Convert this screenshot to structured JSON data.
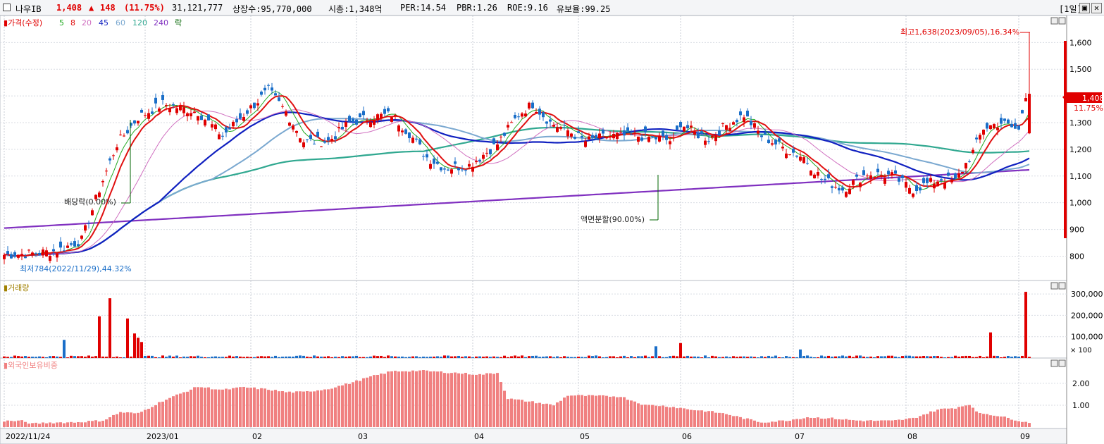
{
  "header": {
    "name": "나우IB",
    "price": "1,408",
    "arrow": "▲",
    "change": "148",
    "change_pct": "(11.75%)",
    "volume": "31,121,777",
    "listed": "상장수:95,770,000",
    "mcap": "시총:1,348억",
    "per": "PER:14.54",
    "pbr": "PBR:1.26",
    "roe": "ROE:9.16",
    "float": "유보율:99.25",
    "period": "[1일]"
  },
  "legend": {
    "price": "가격(수정)",
    "ma": [
      "5",
      "8",
      "20",
      "45",
      "60",
      "120",
      "240"
    ],
    "rak": "락"
  },
  "annotations": {
    "high": "최고1,638(2023/09/05),16.34%",
    "low": "최저784(2022/11/29),44.32%",
    "rights": "배당락(0.00%)",
    "split": "액면분할(90.00%)"
  },
  "current_tag": {
    "price": "1,408",
    "pct": "11.75%"
  },
  "volume_panel": {
    "label": "거래량",
    "unit": "× 100"
  },
  "foreign_panel": {
    "label": "외국인보유비중"
  },
  "colors": {
    "up": "#e00000",
    "down": "#1a6ec8",
    "ma5": "#22aa22",
    "ma8": "#e01010",
    "ma20": "#d070c0",
    "ma45": "#1020c0",
    "ma60": "#7aa8d0",
    "ma120": "#30a890",
    "ma240": "#8030c0",
    "foreign": "#f08080"
  },
  "chart_data": [
    {
      "type": "candlestick",
      "title": "",
      "x": [
        "2022/11/24",
        "2023/01",
        "02",
        "03",
        "04",
        "05",
        "06",
        "07",
        "08",
        "09"
      ],
      "ylim": [
        730,
        1680
      ],
      "yticks": [
        "800",
        "900",
        "1,000",
        "1,100",
        "1,200",
        "1,300",
        "1,400",
        "1,500",
        "1,600"
      ],
      "close_path": [
        [
          0,
          805
        ],
        [
          8,
          810
        ],
        [
          15,
          820
        ],
        [
          22,
          860
        ],
        [
          27,
          1050
        ],
        [
          32,
          1220
        ],
        [
          38,
          1320
        ],
        [
          45,
          1370
        ],
        [
          55,
          1340
        ],
        [
          62,
          1250
        ],
        [
          68,
          1330
        ],
        [
          75,
          1420
        ],
        [
          80,
          1340
        ],
        [
          85,
          1230
        ],
        [
          92,
          1230
        ],
        [
          98,
          1300
        ],
        [
          104,
          1320
        ],
        [
          110,
          1330
        ],
        [
          115,
          1260
        ],
        [
          120,
          1170
        ],
        [
          125,
          1130
        ],
        [
          132,
          1140
        ],
        [
          140,
          1220
        ],
        [
          146,
          1330
        ],
        [
          150,
          1370
        ],
        [
          155,
          1300
        ],
        [
          160,
          1270
        ],
        [
          165,
          1230
        ],
        [
          172,
          1250
        ],
        [
          180,
          1250
        ],
        [
          186,
          1240
        ],
        [
          190,
          1230
        ],
        [
          192,
          1300
        ],
        [
          196,
          1260
        ],
        [
          200,
          1240
        ],
        [
          205,
          1290
        ],
        [
          210,
          1330
        ],
        [
          215,
          1250
        ],
        [
          222,
          1200
        ],
        [
          227,
          1170
        ],
        [
          232,
          1090
        ],
        [
          238,
          1050
        ],
        [
          245,
          1110
        ],
        [
          252,
          1100
        ],
        [
          258,
          1050
        ],
        [
          262,
          1070
        ],
        [
          266,
          1090
        ],
        [
          270,
          1080
        ],
        [
          275,
          1190
        ],
        [
          278,
          1280
        ],
        [
          283,
          1300
        ],
        [
          288,
          1270
        ],
        [
          290,
          1408
        ]
      ],
      "high_label": 1638,
      "low_label": 784
    },
    {
      "type": "bar",
      "title": "거래량",
      "yticks": [
        "100,000",
        "200,000",
        "300,000"
      ],
      "spikes": [
        [
          17,
          85
        ],
        [
          27,
          195
        ],
        [
          30,
          280
        ],
        [
          35,
          185
        ],
        [
          37,
          115
        ],
        [
          38,
          95
        ],
        [
          39,
          75
        ],
        [
          185,
          55
        ],
        [
          192,
          70
        ],
        [
          226,
          40
        ],
        [
          280,
          120
        ],
        [
          290,
          310
        ]
      ]
    },
    {
      "type": "bar",
      "title": "외국인보유비중",
      "yticks": [
        "1.00",
        "2.00"
      ],
      "profile": [
        [
          0,
          0.28
        ],
        [
          5,
          0.28
        ],
        [
          8,
          0.15
        ],
        [
          12,
          0.2
        ],
        [
          20,
          0.22
        ],
        [
          28,
          0.3
        ],
        [
          33,
          0.68
        ],
        [
          38,
          0.62
        ],
        [
          45,
          1.2
        ],
        [
          55,
          1.85
        ],
        [
          62,
          1.7
        ],
        [
          68,
          1.82
        ],
        [
          75,
          1.72
        ],
        [
          80,
          1.6
        ],
        [
          85,
          1.6
        ],
        [
          92,
          1.75
        ],
        [
          98,
          2.0
        ],
        [
          104,
          2.3
        ],
        [
          110,
          2.55
        ],
        [
          118,
          2.58
        ],
        [
          128,
          2.48
        ],
        [
          135,
          2.4
        ],
        [
          140,
          2.48
        ],
        [
          143,
          1.3
        ],
        [
          150,
          1.15
        ],
        [
          156,
          1.0
        ],
        [
          160,
          1.45
        ],
        [
          175,
          1.4
        ],
        [
          182,
          1.0
        ],
        [
          185,
          1.0
        ],
        [
          190,
          0.92
        ],
        [
          195,
          0.8
        ],
        [
          200,
          0.72
        ],
        [
          205,
          0.6
        ],
        [
          210,
          0.4
        ],
        [
          215,
          0.22
        ],
        [
          222,
          0.3
        ],
        [
          228,
          0.45
        ],
        [
          235,
          0.4
        ],
        [
          242,
          0.3
        ],
        [
          252,
          0.28
        ],
        [
          258,
          0.4
        ],
        [
          265,
          0.8
        ],
        [
          270,
          0.88
        ],
        [
          274,
          1.05
        ],
        [
          276,
          0.68
        ],
        [
          282,
          0.52
        ],
        [
          288,
          0.3
        ],
        [
          290,
          0.22
        ]
      ]
    }
  ]
}
